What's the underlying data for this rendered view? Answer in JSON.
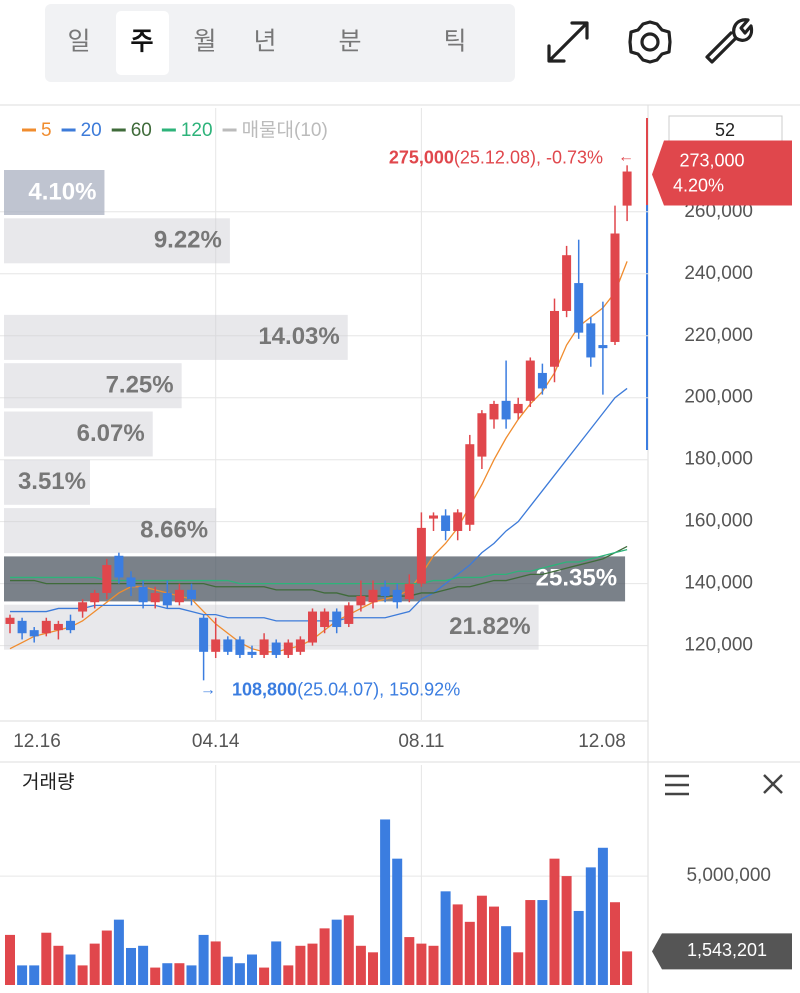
{
  "ui": {
    "tabs": [
      "일",
      "주",
      "월",
      "년",
      "분",
      "틱"
    ],
    "count": "52",
    "volume_title": "거래량"
  },
  "chart_data": {
    "type": "candlestick",
    "categories": [
      "12.16",
      null,
      null,
      null,
      null,
      null,
      null,
      null,
      null,
      null,
      null,
      null,
      null,
      null,
      null,
      null,
      null,
      "04.14",
      null,
      null,
      null,
      null,
      null,
      null,
      null,
      null,
      null,
      null,
      null,
      null,
      null,
      null,
      null,
      null,
      "08.11",
      null,
      null,
      null,
      null,
      null,
      null,
      null,
      null,
      null,
      null,
      null,
      null,
      null,
      null,
      null,
      null,
      "12.08"
    ],
    "ylim": [
      96000,
      293500
    ],
    "yticks": [
      {
        "value": 120000,
        "label": "120,000"
      },
      {
        "value": 140000,
        "label": "140,000"
      },
      {
        "value": 160000,
        "label": "160,000"
      },
      {
        "value": 180000,
        "label": "180,000"
      },
      {
        "value": 200000,
        "label": "200,000"
      },
      {
        "value": 220000,
        "label": "220,000"
      },
      {
        "value": 240000,
        "label": "240,000"
      },
      {
        "value": 260000,
        "label": "260,000"
      }
    ],
    "up_color": "#e0474c",
    "down_color": "#3b7de0",
    "grid": true,
    "ohlc": {
      "open": [
        127000,
        128000,
        125000,
        124000,
        125000,
        128000,
        131000,
        134000,
        137000,
        149000,
        142000,
        139000,
        134000,
        137000,
        134000,
        138000,
        129000,
        118000,
        122000,
        122000,
        118000,
        117000,
        121000,
        117000,
        118000,
        121000,
        126000,
        131000,
        127000,
        133000,
        134000,
        139000,
        138000,
        135000,
        140000,
        161000,
        162000,
        157000,
        159000,
        181000,
        193000,
        199000,
        195000,
        199000,
        208000,
        210000,
        228000,
        237000,
        224000,
        217000,
        218000,
        262000
      ],
      "high": [
        130000,
        129000,
        126000,
        129000,
        128000,
        130000,
        135000,
        138000,
        148000,
        150000,
        144000,
        141000,
        139000,
        141000,
        140000,
        140000,
        130000,
        129000,
        123000,
        123000,
        120000,
        124000,
        122000,
        122000,
        123000,
        132000,
        132000,
        132000,
        134000,
        141000,
        141000,
        141000,
        140000,
        143000,
        163000,
        163000,
        164000,
        164000,
        188000,
        196000,
        199000,
        212000,
        200000,
        213000,
        211000,
        232000,
        249000,
        251000,
        226000,
        231000,
        262000,
        275000
      ],
      "low": [
        124000,
        122000,
        121000,
        123000,
        122000,
        124000,
        129000,
        132000,
        135000,
        140000,
        136000,
        132000,
        132000,
        132000,
        133000,
        133000,
        108800,
        116000,
        117000,
        116000,
        116000,
        116000,
        116000,
        116000,
        117000,
        120000,
        124000,
        124000,
        126000,
        131000,
        132000,
        134000,
        132000,
        134000,
        139000,
        157000,
        154000,
        154000,
        157000,
        177000,
        190000,
        190000,
        193000,
        197000,
        201000,
        205000,
        226000,
        219000,
        210000,
        201000,
        217000,
        257000
      ],
      "close": [
        129000,
        124000,
        123000,
        128000,
        127000,
        125000,
        134000,
        137000,
        146000,
        142000,
        139000,
        134000,
        137000,
        133000,
        138000,
        135000,
        118000,
        122000,
        118000,
        117000,
        117000,
        122000,
        117000,
        121000,
        122000,
        131000,
        131000,
        126000,
        133000,
        136000,
        138000,
        136000,
        134000,
        140000,
        158000,
        162000,
        157000,
        163000,
        185000,
        195000,
        198000,
        193000,
        198000,
        212000,
        203000,
        228000,
        246000,
        221000,
        213000,
        216000,
        253000,
        273000
      ]
    },
    "series": [
      {
        "name": "5",
        "color": "#f08c2e",
        "values": [
          119000,
          121000,
          123000,
          124000,
          125000,
          126000,
          128000,
          131000,
          134000,
          137000,
          139000,
          139000,
          138000,
          137000,
          136000,
          135000,
          131000,
          127000,
          124000,
          121000,
          119000,
          118000,
          118000,
          119000,
          120000,
          122000,
          125000,
          128000,
          130000,
          132000,
          134000,
          135000,
          136000,
          138000,
          143000,
          149000,
          153000,
          158000,
          165000,
          172000,
          180000,
          187000,
          193000,
          198000,
          202000,
          208000,
          217000,
          223000,
          226000,
          229000,
          234000,
          244000
        ]
      },
      {
        "name": "20",
        "color": "#3d7bd9",
        "values": [
          131000,
          131000,
          131000,
          131000,
          132000,
          132000,
          132000,
          133000,
          133000,
          133000,
          133000,
          133000,
          133000,
          132000,
          132000,
          131000,
          130000,
          130000,
          129000,
          129000,
          129000,
          129000,
          128000,
          128000,
          128000,
          128000,
          128000,
          128000,
          129000,
          129000,
          129000,
          129000,
          130000,
          131000,
          135000,
          137000,
          140000,
          143000,
          146000,
          150000,
          153000,
          157000,
          160000,
          165000,
          170000,
          175000,
          180000,
          185000,
          190000,
          195000,
          200000,
          203000
        ]
      },
      {
        "name": "60",
        "color": "#3f6b3a",
        "values": [
          141000,
          141000,
          141000,
          140000,
          140000,
          140000,
          140000,
          140000,
          140000,
          140000,
          140000,
          140000,
          140000,
          140000,
          140000,
          140000,
          140000,
          139000,
          139000,
          139000,
          139000,
          139000,
          138000,
          138000,
          138000,
          138000,
          137000,
          137000,
          136000,
          136000,
          136000,
          136000,
          136000,
          136000,
          137000,
          137000,
          138000,
          139000,
          139000,
          140000,
          141000,
          141000,
          142000,
          143000,
          143000,
          144000,
          145000,
          146000,
          147000,
          148000,
          150000,
          152000
        ]
      },
      {
        "name": "120",
        "color": "#2db37a",
        "values": [
          142000,
          142000,
          142000,
          142000,
          142000,
          142000,
          142000,
          142000,
          141000,
          141000,
          141000,
          141000,
          141000,
          141000,
          141000,
          141000,
          141000,
          141000,
          141000,
          140000,
          140000,
          140000,
          140000,
          140000,
          140000,
          140000,
          140000,
          140000,
          140000,
          140000,
          140000,
          140000,
          140000,
          140000,
          140000,
          141000,
          141000,
          142000,
          142000,
          142000,
          143000,
          143000,
          144000,
          144000,
          145000,
          146000,
          147000,
          147000,
          148000,
          149000,
          150000,
          151000
        ]
      }
    ],
    "profile": {
      "name": "매물대(10)",
      "color": "#bbbbbb",
      "values": [
        4.1,
        9.22,
        null,
        14.03,
        7.25,
        6.07,
        3.51,
        8.66,
        25.35,
        21.82
      ],
      "value_labels": [
        "4.10%",
        "9.22%",
        null,
        "14.03%",
        "7.25%",
        "6.07%",
        "3.51%",
        "8.66%",
        "25.35%",
        "21.82%"
      ]
    },
    "max": {
      "value": 275000,
      "label": "275,000",
      "note": "(25.12.08), -0.73%"
    },
    "min": {
      "value": 108800,
      "label": "108,800",
      "note": "(25.04.07), 150.92%"
    },
    "current": {
      "value": 273000,
      "label": "273,000",
      "change": {
        "value": 4.2,
        "label": "4.20%"
      }
    },
    "volume": {
      "ylim": [
        0,
        10100000
      ],
      "yticks": [
        {
          "value": 5000000,
          "label": "5,000,000"
        }
      ],
      "last_label": "1,543,201",
      "values": [
        2300000,
        900000,
        900000,
        2400000,
        1800000,
        1400000,
        900000,
        1900000,
        2500000,
        3000000,
        1700000,
        1800000,
        800000,
        1000000,
        1000000,
        900000,
        2300000,
        2000000,
        1300000,
        1000000,
        1400000,
        800000,
        2000000,
        900000,
        1800000,
        1900000,
        2600000,
        3000000,
        3200000,
        1800000,
        1500000,
        7600000,
        5800000,
        2200000,
        1900000,
        1800000,
        4300000,
        3700000,
        2900000,
        4100000,
        3600000,
        2700000,
        1500000,
        3900000,
        3900000,
        5800000,
        5000000,
        3400000,
        5400000,
        6300000,
        3800000,
        1543201
      ]
    }
  }
}
